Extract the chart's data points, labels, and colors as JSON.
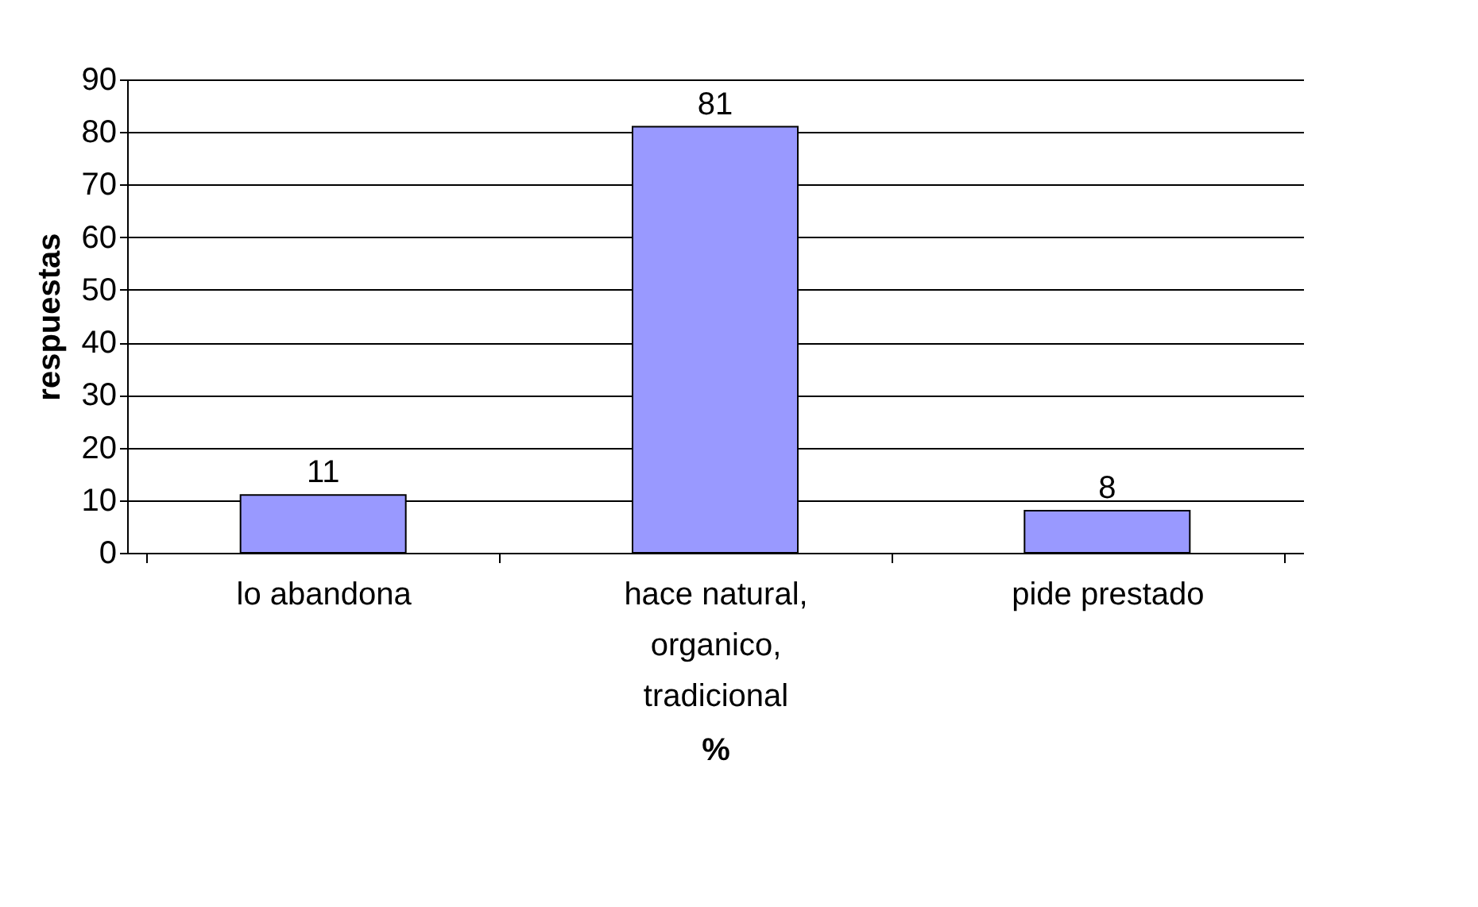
{
  "chart_data": {
    "type": "bar",
    "xlabel": "%",
    "ylabel": "respuestas",
    "categories": [
      "lo abandona",
      "hace natural, organico, tradicional",
      "pide prestado"
    ],
    "values": [
      11,
      81,
      8
    ],
    "color": "#9999ff",
    "ylim": [
      0,
      90
    ],
    "yticks": [
      0,
      10,
      20,
      30,
      40,
      50,
      60,
      70,
      80,
      90
    ],
    "grid": "y",
    "data_labels": true
  }
}
